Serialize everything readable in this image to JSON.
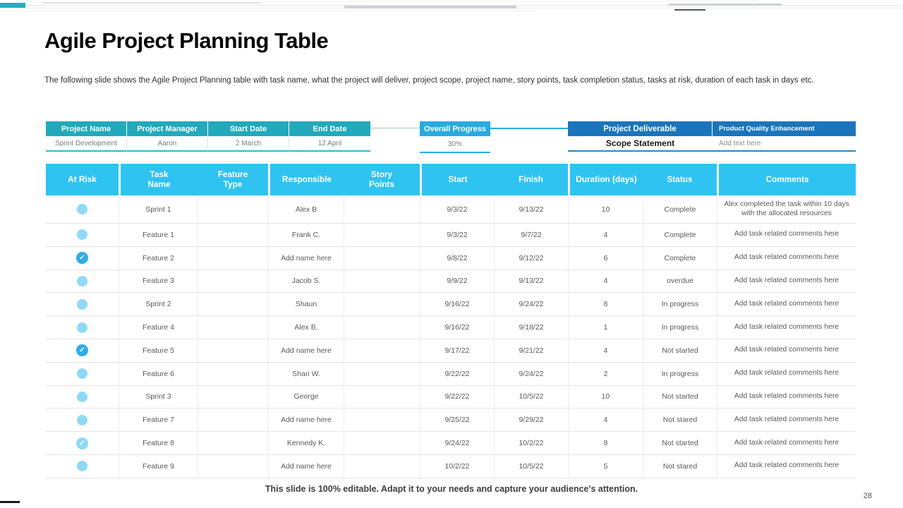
{
  "title": "Agile Project Planning Table",
  "subtitle": "The following slide shows the Agile Project Planning table with task name, what the project will deliver, project scope, project name, story points, task completion status, tasks at risk, duration of each task in days etc.",
  "footer": "This slide is 100% editable. Adapt it to your needs and capture your audience's attention.",
  "page_number": "28",
  "colors": {
    "info_header_teal": "#23a9bc",
    "task_header_cyan": "#2fc3f2",
    "progress_blue": "#29abe2",
    "deliverable_dark_blue": "#1b75bc",
    "risk_dot_light_blue": "#8fd9f6",
    "risk_check_blue": "#2fade4",
    "body_text_gray": "#595959"
  },
  "project_info": {
    "headers": [
      "Project Name",
      "Project Manager",
      "Start Date",
      "End Date"
    ],
    "values": [
      "Sprint Development",
      "Aaron",
      "2 March",
      "12 April"
    ]
  },
  "overall_progress": {
    "label": "Overall Progress",
    "value": "30%"
  },
  "deliverable": {
    "label": "Project Deliverable",
    "value": "Product Quality Enhancement",
    "scope_label": "Scope Statement",
    "scope_value": "Add text here"
  },
  "task_table": {
    "headers": [
      "At Risk",
      "Task Name",
      "Feature Type",
      "Responsible",
      "Story Points",
      "Start",
      "Finish",
      "Duration (days)",
      "Status",
      "Comments"
    ],
    "rows": [
      {
        "risk": "plain",
        "task": "Sprint 1",
        "feature_type": "",
        "responsible": "Alex B",
        "story_points": "",
        "start": "9/3/22",
        "finish": "9/13/22",
        "duration": "10",
        "status": "Complete",
        "comments": "Alex completed the task within 10 days with the allocated resources"
      },
      {
        "risk": "plain",
        "task": "Feature 1",
        "feature_type": "",
        "responsible": "Frank C.",
        "story_points": "",
        "start": "9/3/22",
        "finish": "9/7/22",
        "duration": "4",
        "status": "Complete",
        "comments": "Add task related comments here"
      },
      {
        "risk": "checked",
        "task": "Feature 2",
        "feature_type": "",
        "responsible": "Add name here",
        "story_points": "",
        "start": "9/8/22",
        "finish": "9/12/22",
        "duration": "6",
        "status": "Complete",
        "comments": "Add task related comments here"
      },
      {
        "risk": "plain",
        "task": "Feature 3",
        "feature_type": "",
        "responsible": "Jacob S.",
        "story_points": "",
        "start": "9/9/22",
        "finish": "9/13/22",
        "duration": "4",
        "status": "overdue",
        "comments": "Add task related comments here"
      },
      {
        "risk": "plain",
        "task": "Sprint 2",
        "feature_type": "",
        "responsible": "Shaun",
        "story_points": "",
        "start": "9/16/22",
        "finish": "9/24/22",
        "duration": "8",
        "status": "In progress",
        "comments": "Add task related comments here"
      },
      {
        "risk": "plain",
        "task": "Feature 4",
        "feature_type": "",
        "responsible": "Alex B.",
        "story_points": "",
        "start": "9/16/22",
        "finish": "9/18/22",
        "duration": "1",
        "status": "In progress",
        "comments": "Add task related comments here"
      },
      {
        "risk": "checked",
        "task": "Feature 5",
        "feature_type": "",
        "responsible": "Add name here",
        "story_points": "",
        "start": "9/17/22",
        "finish": "9/21/22",
        "duration": "4",
        "status": "Not started",
        "comments": "Add task related comments here"
      },
      {
        "risk": "plain",
        "task": "Feature 6",
        "feature_type": "",
        "responsible": "Shari W.",
        "story_points": "",
        "start": "9/22/22",
        "finish": "9/24/22",
        "duration": "2",
        "status": "In progress",
        "comments": "Add task related comments here"
      },
      {
        "risk": "plain",
        "task": "Sprint 3",
        "feature_type": "",
        "responsible": "George",
        "story_points": "",
        "start": "9/22/22",
        "finish": "10/5/22",
        "duration": "10",
        "status": "Not started",
        "comments": "Add task related comments here"
      },
      {
        "risk": "plain",
        "task": "Feature 7",
        "feature_type": "",
        "responsible": "Add name here",
        "story_points": "",
        "start": "9/25/22",
        "finish": "9/29/22",
        "duration": "4",
        "status": "Not stared",
        "comments": "Add task related comments here"
      },
      {
        "risk": "checked_light",
        "task": "Feature 8",
        "feature_type": "",
        "responsible": "Kennedy K.",
        "story_points": "",
        "start": "9/24/22",
        "finish": "10/2/22",
        "duration": "8",
        "status": "Not started",
        "comments": "Add task related comments here"
      },
      {
        "risk": "plain",
        "task": "Feature 9",
        "feature_type": "",
        "responsible": "Add name here",
        "story_points": "",
        "start": "10/2/22",
        "finish": "10/5/22",
        "duration": "5",
        "status": "Not stared",
        "comments": "Add task related comments here"
      }
    ]
  }
}
